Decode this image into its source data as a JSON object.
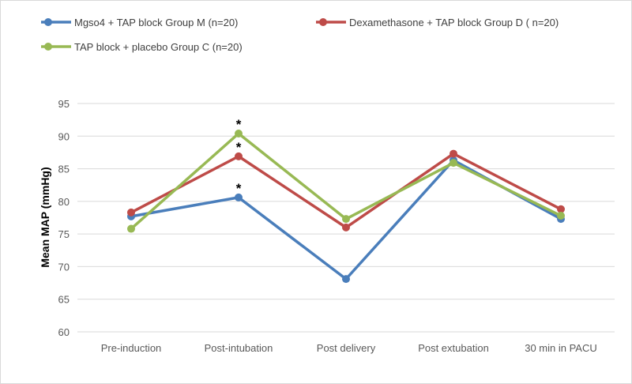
{
  "chart_data": {
    "type": "line",
    "title": "",
    "xlabel": "",
    "ylabel": "Mean MAP (mmHg)",
    "ylim": [
      60,
      95
    ],
    "yticks": [
      60,
      65,
      70,
      75,
      80,
      85,
      90,
      95
    ],
    "categories": [
      "Pre-induction",
      "Post-intubation",
      "Post delivery",
      "Post extubation",
      "30 min in PACU"
    ],
    "grid": "horizontal",
    "legend_position": "top",
    "series": [
      {
        "name": "Mgso4 + TAP block Group M (n=20)",
        "color": "#4a7ebb",
        "values": [
          77.7,
          80.6,
          68.1,
          86.3,
          77.3
        ]
      },
      {
        "name": "Dexamethasone + TAP block Group D ( n=20)",
        "color": "#be4b48",
        "values": [
          78.3,
          86.9,
          76.0,
          87.3,
          78.8
        ]
      },
      {
        "name": "TAP block + placebo Group C (n=20)",
        "color": "#98b954",
        "values": [
          75.8,
          90.4,
          77.3,
          85.9,
          77.8
        ]
      }
    ],
    "annotations": [
      {
        "text": "*",
        "category": "Post-intubation",
        "value": 80.6
      },
      {
        "text": "*",
        "category": "Post-intubation",
        "value": 86.9
      },
      {
        "text": "*",
        "category": "Post-intubation",
        "value": 90.4
      }
    ]
  }
}
